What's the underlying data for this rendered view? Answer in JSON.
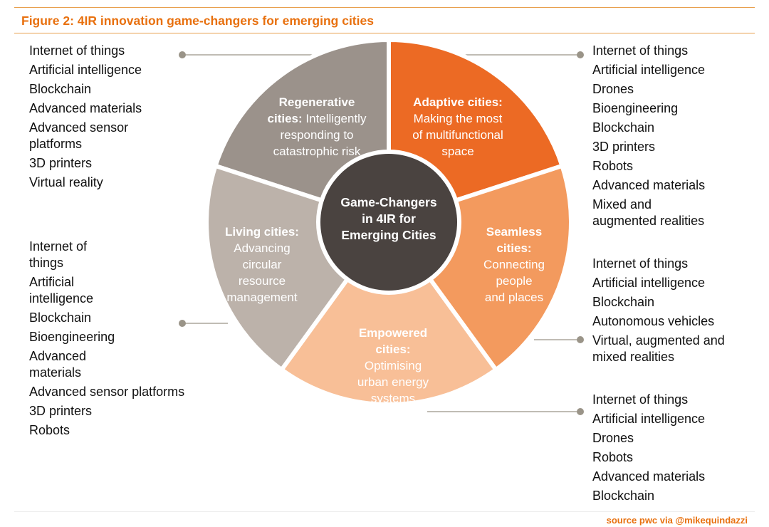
{
  "figure": {
    "title": "Figure 2: 4IR innovation game-changers for emerging cities",
    "source": "source pwc via @mikequindazzi"
  },
  "center": {
    "lines": [
      "Game-Changers",
      "in 4IR for",
      "Emerging Cities"
    ]
  },
  "segments": [
    {
      "id": "regenerative",
      "color": "#9b928b",
      "title_lines": [
        "Regenerative",
        "cities:"
      ],
      "desc_lines": [
        "Intelligently",
        "responding to",
        "catastrophic risk"
      ],
      "technologies": [
        "Internet of things",
        "Artificial intelligence",
        "Blockchain",
        "Advanced materials",
        "Advanced sensor platforms",
        "3D printers",
        "Virtual reality"
      ]
    },
    {
      "id": "adaptive",
      "color": "#ec6a24",
      "title_lines": [
        "Adaptive cities:"
      ],
      "desc_lines": [
        "Making the most",
        "of multifunctional",
        "space"
      ],
      "technologies": [
        "Internet of things",
        "Artificial intelligence",
        "Drones",
        "Bioengineering",
        "Blockchain",
        "3D printers",
        "Robots",
        "Advanced materials",
        "Mixed and augmented realities"
      ]
    },
    {
      "id": "seamless",
      "color": "#f39a5e",
      "title_lines": [
        "Seamless",
        "cities:"
      ],
      "desc_lines": [
        "Connecting",
        "people",
        "and places"
      ],
      "technologies": [
        "Internet of things",
        "Artificial intelligence",
        "Blockchain",
        "Autonomous vehicles",
        "Virtual, augmented and mixed realities"
      ]
    },
    {
      "id": "empowered",
      "color": "#f8bf97",
      "title_lines": [
        "Empowered",
        "cities:"
      ],
      "desc_lines": [
        "Optimising",
        "urban energy",
        "systems"
      ],
      "technologies": [
        "Internet of things",
        "Artificial intelligence",
        "Drones",
        "Robots",
        "Advanced materials",
        "Blockchain"
      ]
    },
    {
      "id": "living",
      "color": "#bcb2aa",
      "title_lines": [
        "Living cities:"
      ],
      "desc_lines": [
        "Advancing",
        "circular",
        "resource",
        "management"
      ],
      "technologies": [
        "Internet of things",
        "Artificial intelligence",
        "Blockchain",
        "Bioengineering",
        "Advanced materials",
        "Advanced sensor platforms",
        "3D printers",
        "Robots"
      ]
    }
  ],
  "colors": {
    "accent": "#e8700e",
    "center": "#4a4340",
    "connector": "#9a9488",
    "text": "#111111"
  }
}
